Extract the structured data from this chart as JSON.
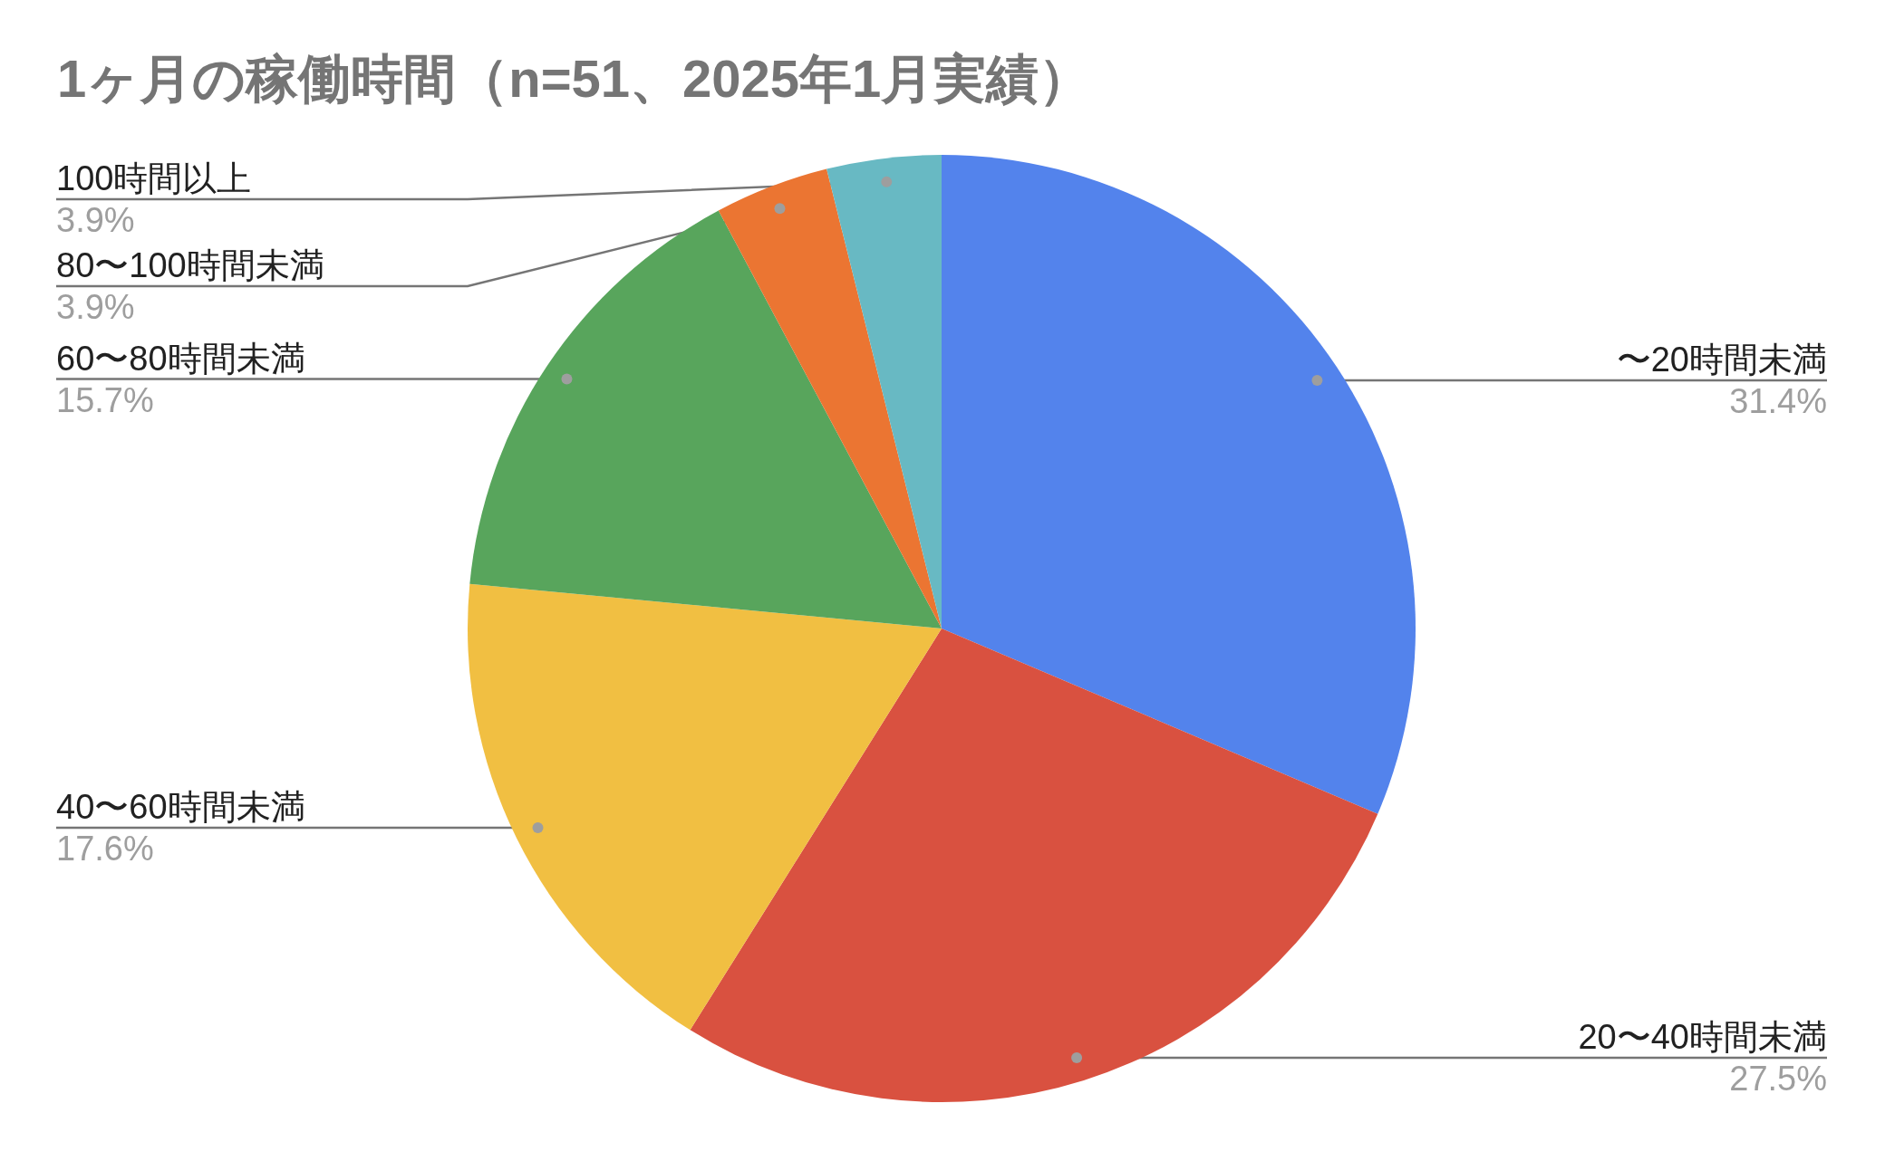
{
  "chart_data": {
    "type": "pie",
    "title": "1ヶ月の稼働時間（n=51、2025年1月実績）",
    "categories": [
      "〜20時間未満",
      "20〜40時間未満",
      "40〜60時間未満",
      "60〜80時間未満",
      "80〜100時間未満",
      "100時間以上"
    ],
    "values": [
      31.4,
      27.5,
      17.6,
      15.7,
      3.9,
      3.9
    ],
    "colors": [
      "#5383ec",
      "#d95140",
      "#f1bf42",
      "#58a55c",
      "#eb7532",
      "#68b9c3"
    ],
    "value_labels": [
      "31.4%",
      "27.5%",
      "17.6%",
      "15.7%",
      "3.9%",
      "3.9%"
    ]
  }
}
